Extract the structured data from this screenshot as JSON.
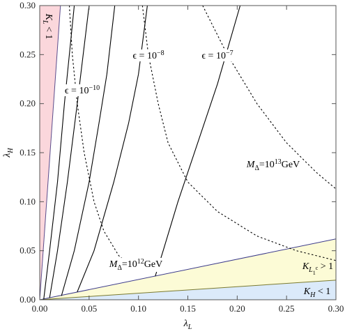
{
  "chart_data": {
    "type": "line",
    "x_label": [
      {
        "text": "λ"
      },
      {
        "text": "L",
        "shift": "sub"
      }
    ],
    "y_label": [
      {
        "text": "λ"
      },
      {
        "text": "H",
        "shift": "sub"
      }
    ],
    "xlim": [
      0,
      0.3
    ],
    "ylim": [
      0,
      0.3
    ],
    "xticks": [
      {
        "value": 0,
        "label": "0.00"
      },
      {
        "value": 0.05,
        "label": "0.05"
      },
      {
        "value": 0.1,
        "label": "0.10"
      },
      {
        "value": 0.15,
        "label": "0.15"
      },
      {
        "value": 0.2,
        "label": "0.20"
      },
      {
        "value": 0.25,
        "label": "0.25"
      },
      {
        "value": 0.3,
        "label": "0.30"
      }
    ],
    "yticks": [
      {
        "value": 0,
        "label": "0.00"
      },
      {
        "value": 0.05,
        "label": "0.05"
      },
      {
        "value": 0.1,
        "label": "0.10"
      },
      {
        "value": 0.15,
        "label": "0.15"
      },
      {
        "value": 0.2,
        "label": "0.20"
      },
      {
        "value": 0.25,
        "label": "0.25"
      },
      {
        "value": 0.3,
        "label": "0.30"
      }
    ],
    "regions": [
      {
        "color": "#fbd7dc",
        "x": [
          0,
          0.021,
          0
        ],
        "values": [
          0,
          0.3,
          0.3
        ],
        "label": [
          {
            "text": "K"
          },
          {
            "text": "L",
            "shift": "sub"
          },
          {
            "text": " < 1"
          }
        ]
      },
      {
        "color": "#fcfbd6",
        "x": [
          0,
          0.3,
          0.3
        ],
        "values": [
          0,
          0.062,
          0.02
        ],
        "label": [
          {
            "text": "K"
          },
          {
            "text": "L",
            "shift": "sub"
          },
          {
            "text": "1",
            "shift": "sub2"
          },
          {
            "text": "c",
            "shift": "subsup"
          },
          {
            "text": " > 1"
          }
        ]
      },
      {
        "color": "#dbeafa",
        "x": [
          0,
          0.3,
          0.3
        ],
        "values": [
          0,
          0.02,
          0
        ],
        "label": [
          {
            "text": "K"
          },
          {
            "text": "H",
            "shift": "sub"
          },
          {
            "text": " < 1"
          }
        ]
      }
    ],
    "boundaries": [
      {
        "color": "#5b4c8c",
        "x": [
          0,
          0.021
        ],
        "values": [
          0,
          0.3
        ]
      },
      {
        "color": "#3b3a8a",
        "x": [
          0,
          0.3
        ],
        "values": [
          0,
          0.062
        ]
      },
      {
        "color": "#7a7a30",
        "x": [
          0,
          0.3
        ],
        "values": [
          0,
          0.02
        ]
      }
    ],
    "series": [
      {
        "style": "solid",
        "color": "#000000",
        "x": [
          0.004,
          0.01,
          0.018,
          0.025,
          0.035
        ],
        "values": [
          0,
          0.05,
          0.12,
          0.2,
          0.3
        ]
      },
      {
        "style": "solid",
        "color": "#000000",
        "x": [
          0.01,
          0.018,
          0.028,
          0.038,
          0.05
        ],
        "values": [
          0.002,
          0.05,
          0.12,
          0.2,
          0.3
        ]
      },
      {
        "style": "solid",
        "color": "#000000",
        "x": [
          0.022,
          0.035,
          0.05,
          0.06,
          0.068,
          0.076
        ],
        "values": [
          0.004,
          0.05,
          0.12,
          0.18,
          0.23,
          0.3
        ],
        "label": [
          {
            "text": "ϵ = 10"
          },
          {
            "text": "−10",
            "shift": "sup"
          }
        ]
      },
      {
        "style": "solid",
        "color": "#000000",
        "x": [
          0.038,
          0.055,
          0.075,
          0.09,
          0.1,
          0.109
        ],
        "values": [
          0.008,
          0.05,
          0.12,
          0.18,
          0.23,
          0.3
        ],
        "label": [
          {
            "text": "ϵ = 10"
          },
          {
            "text": "−8",
            "shift": "sup"
          }
        ]
      },
      {
        "style": "solid",
        "color": "#000000",
        "x": [
          0.117,
          0.125,
          0.14,
          0.16,
          0.18,
          0.203
        ],
        "values": [
          0.024,
          0.05,
          0.1,
          0.16,
          0.22,
          0.3
        ],
        "label": [
          {
            "text": "ϵ = 10"
          },
          {
            "text": "−7",
            "shift": "sup"
          }
        ]
      },
      {
        "style": "dashed",
        "color": "#000000",
        "x": [
          0.03,
          0.033,
          0.038,
          0.045,
          0.055,
          0.065,
          0.08,
          0.1
        ],
        "values": [
          0.3,
          0.25,
          0.2,
          0.15,
          0.1,
          0.07,
          0.045,
          0.028
        ],
        "label": [
          {
            "text": "M"
          },
          {
            "text": "Δ",
            "shift": "sub"
          },
          {
            "text": "=10"
          },
          {
            "text": "12",
            "shift": "sup"
          },
          {
            "text": "GeV"
          }
        ]
      },
      {
        "style": "dashed",
        "color": "#000000",
        "x": [
          0.104,
          0.11,
          0.12,
          0.13,
          0.15,
          0.18,
          0.22,
          0.26,
          0.3
        ],
        "values": [
          0.3,
          0.25,
          0.2,
          0.16,
          0.12,
          0.09,
          0.065,
          0.05,
          0.04
        ]
      },
      {
        "style": "dashed",
        "color": "#000000",
        "x": [
          0.165,
          0.19,
          0.22,
          0.25,
          0.28,
          0.3
        ],
        "values": [
          0.3,
          0.25,
          0.2,
          0.16,
          0.13,
          0.113
        ],
        "label": [
          {
            "text": "M"
          },
          {
            "text": "Δ",
            "shift": "sub"
          },
          {
            "text": "=10"
          },
          {
            "text": "13",
            "shift": "sup"
          },
          {
            "text": "GeV"
          }
        ]
      }
    ]
  }
}
